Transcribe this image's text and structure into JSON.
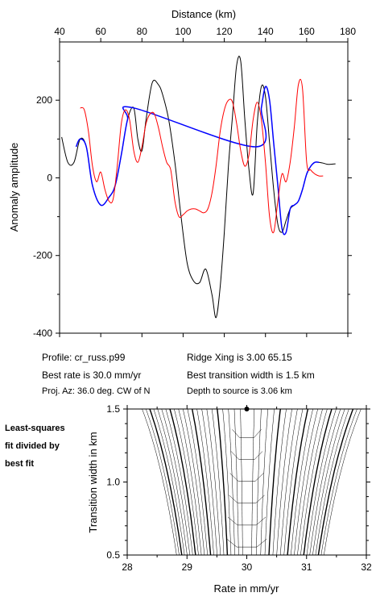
{
  "chart_data": [
    {
      "type": "line",
      "xlabel": "Distance (km)",
      "ylabel": "Anomaly amplitude",
      "xlim": [
        40,
        180
      ],
      "ylim": [
        -400,
        350
      ],
      "xticks": [
        "40",
        "60",
        "80",
        "100",
        "120",
        "140",
        "160",
        "180"
      ],
      "yticks": [
        "200",
        "0",
        "-200",
        "-400"
      ],
      "x_axis_position": "top",
      "grid": false,
      "legend": "none",
      "series": [
        {
          "color": "#000000",
          "x": [
            41,
            44,
            47,
            50,
            53,
            56,
            60,
            64,
            67,
            70,
            73,
            76,
            78,
            80,
            82,
            85,
            88,
            90,
            93,
            96,
            99,
            102,
            105,
            108,
            111,
            114,
            116,
            118,
            120,
            122,
            124,
            126,
            128,
            130,
            132,
            134,
            136,
            138,
            140,
            142,
            144,
            146,
            148,
            150,
            152,
            154,
            156,
            158,
            160,
            162,
            164,
            166,
            168,
            170,
            172,
            174
          ],
          "y": [
            105,
            40,
            40,
            100,
            80,
            -20,
            -70,
            -50,
            -20,
            60,
            150,
            180,
            100,
            70,
            150,
            245,
            240,
            215,
            150,
            40,
            -100,
            -220,
            -265,
            -270,
            -235,
            -300,
            -360,
            -280,
            -140,
            30,
            160,
            290,
            300,
            150,
            20,
            -40,
            140,
            235,
            210,
            90,
            -30,
            -120,
            -140,
            -110,
            -80,
            -70,
            -60,
            -30,
            10,
            30,
            40,
            40,
            38,
            35,
            35,
            36
          ]
        },
        {
          "color": "#0000ff",
          "x": [
            48,
            50,
            53,
            56,
            60,
            64,
            67,
            70,
            73,
            76,
            135,
            138,
            140,
            142,
            144,
            146,
            148,
            150,
            152,
            154,
            156,
            158,
            160,
            162,
            164,
            166
          ],
          "y": [
            80,
            100,
            80,
            -20,
            -70,
            -50,
            -20,
            60,
            150,
            180,
            80,
            180,
            235,
            200,
            90,
            -20,
            -130,
            -140,
            -80,
            -70,
            -60,
            -30,
            10,
            30,
            40,
            40
          ]
        },
        {
          "color": "#ff0000",
          "x": [
            50,
            52,
            54,
            56,
            58,
            60,
            62,
            64,
            66,
            68,
            70,
            72,
            74,
            76,
            78,
            80,
            82,
            84,
            86,
            88,
            90,
            92,
            94,
            96,
            98,
            100,
            102,
            104,
            106,
            108,
            110,
            112,
            114,
            116,
            118,
            120,
            122,
            124,
            126,
            128,
            130,
            132,
            134,
            136,
            138,
            140,
            142,
            144,
            146,
            148,
            150,
            152,
            154,
            156,
            158,
            160,
            162,
            164,
            166,
            168
          ],
          "y": [
            180,
            175,
            120,
            30,
            -10,
            15,
            -30,
            -60,
            -55,
            30,
            140,
            175,
            150,
            70,
            40,
            80,
            140,
            165,
            165,
            130,
            80,
            40,
            20,
            -60,
            -100,
            -95,
            -85,
            -80,
            -80,
            -85,
            -90,
            -80,
            -40,
            30,
            120,
            175,
            200,
            195,
            140,
            70,
            30,
            60,
            150,
            195,
            150,
            40,
            -100,
            -140,
            -60,
            10,
            -10,
            40,
            130,
            240,
            230,
            40,
            20,
            10,
            5,
            5
          ]
        }
      ]
    },
    {
      "type": "contour",
      "xlabel": "Rate in mm/yr",
      "ylabel": "Transition width in km",
      "xlim": [
        28,
        32
      ],
      "ylim": [
        0.5,
        1.5
      ],
      "xticks": [
        "28",
        "29",
        "30",
        "31",
        "32"
      ],
      "yticks": [
        "0.5",
        "1.0",
        "1.5"
      ],
      "best_fit_point": {
        "x": 30.0,
        "y": 1.5
      },
      "grid": false,
      "legend": "none"
    }
  ],
  "info": {
    "profile": "Profile: cr_russ.p99",
    "best_rate": "Best rate is 30.0 mm/yr",
    "proj_az": "Proj. Az: 36.0 deg. CW of N",
    "ridge_xing": "Ridge Xing is 3.00 65.15",
    "best_width": "Best transition width is 1.5 km",
    "depth": "Depth to source is   3.06 km"
  },
  "sidebar_note": {
    "line1": "Least-squares",
    "line2": "fit divided by",
    "line3": "best fit"
  }
}
